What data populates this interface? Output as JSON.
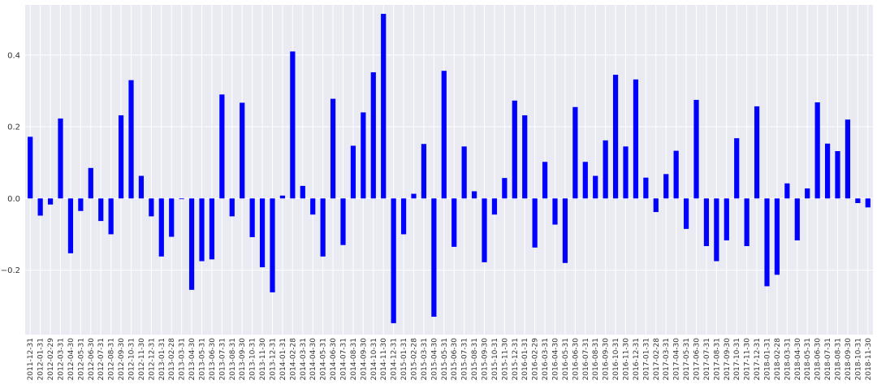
{
  "chart_data": {
    "type": "bar",
    "title": "",
    "xlabel": "",
    "ylabel": "",
    "ylim": [
      -0.38,
      0.54
    ],
    "yticks": [
      -0.2,
      0.0,
      0.2,
      0.4
    ],
    "ytick_labels": [
      "−0.2",
      "0.0",
      "0.2",
      "0.4"
    ],
    "grid": true,
    "background": "#EAEAF2",
    "bar_color": "#0000FF",
    "categories": [
      "2011-12-31",
      "2012-01-31",
      "2012-02-29",
      "2012-03-31",
      "2012-04-30",
      "2012-05-31",
      "2012-06-30",
      "2012-07-31",
      "2012-08-31",
      "2012-09-30",
      "2012-10-31",
      "2012-11-30",
      "2012-12-31",
      "2013-01-31",
      "2013-02-28",
      "2013-03-31",
      "2013-04-30",
      "2013-05-31",
      "2013-06-30",
      "2013-07-31",
      "2013-08-31",
      "2013-09-30",
      "2013-10-31",
      "2013-11-30",
      "2013-12-31",
      "2014-01-31",
      "2014-02-28",
      "2014-03-31",
      "2014-04-30",
      "2014-05-31",
      "2014-06-30",
      "2014-07-31",
      "2014-08-31",
      "2014-09-30",
      "2014-10-31",
      "2014-11-30",
      "2014-12-31",
      "2015-01-31",
      "2015-02-28",
      "2015-03-31",
      "2015-04-30",
      "2015-05-31",
      "2015-06-30",
      "2015-07-31",
      "2015-08-31",
      "2015-09-30",
      "2015-10-31",
      "2015-11-30",
      "2015-12-31",
      "2016-01-31",
      "2016-02-29",
      "2016-03-31",
      "2016-04-30",
      "2016-05-31",
      "2016-06-30",
      "2016-07-31",
      "2016-08-31",
      "2016-09-30",
      "2016-10-31",
      "2016-11-30",
      "2016-12-31",
      "2017-01-31",
      "2017-02-28",
      "2017-03-31",
      "2017-04-30",
      "2017-05-31",
      "2017-06-30",
      "2017-07-31",
      "2017-08-31",
      "2017-09-30",
      "2017-10-31",
      "2017-11-30",
      "2017-12-31",
      "2018-01-31",
      "2018-02-28",
      "2018-03-31",
      "2018-04-30",
      "2018-05-31",
      "2018-06-30",
      "2018-07-31",
      "2018-08-31",
      "2018-09-30",
      "2018-10-31",
      "2018-11-30"
    ],
    "values": [
      0.172,
      -0.048,
      -0.017,
      0.223,
      -0.153,
      -0.035,
      0.085,
      -0.063,
      -0.1,
      0.232,
      0.33,
      0.063,
      -0.05,
      -0.162,
      -0.107,
      -0.002,
      -0.255,
      -0.175,
      -0.17,
      0.29,
      -0.05,
      0.267,
      -0.108,
      -0.192,
      -0.262,
      0.008,
      0.41,
      0.035,
      -0.045,
      -0.162,
      0.278,
      -0.13,
      0.147,
      0.24,
      0.352,
      0.515,
      -0.348,
      -0.1,
      0.013,
      0.152,
      -0.33,
      0.356,
      -0.135,
      0.145,
      0.02,
      -0.178,
      -0.045,
      0.057,
      0.273,
      0.232,
      -0.137,
      0.102,
      -0.073,
      -0.18,
      0.255,
      0.102,
      0.063,
      0.162,
      0.345,
      0.145,
      0.332,
      0.058,
      -0.038,
      0.068,
      0.133,
      -0.085,
      0.275,
      -0.133,
      -0.175,
      -0.117,
      0.168,
      -0.133,
      0.257,
      -0.245,
      -0.213,
      0.042,
      -0.117,
      0.028,
      0.268,
      0.153,
      0.132,
      0.22,
      -0.013,
      -0.025
    ]
  }
}
